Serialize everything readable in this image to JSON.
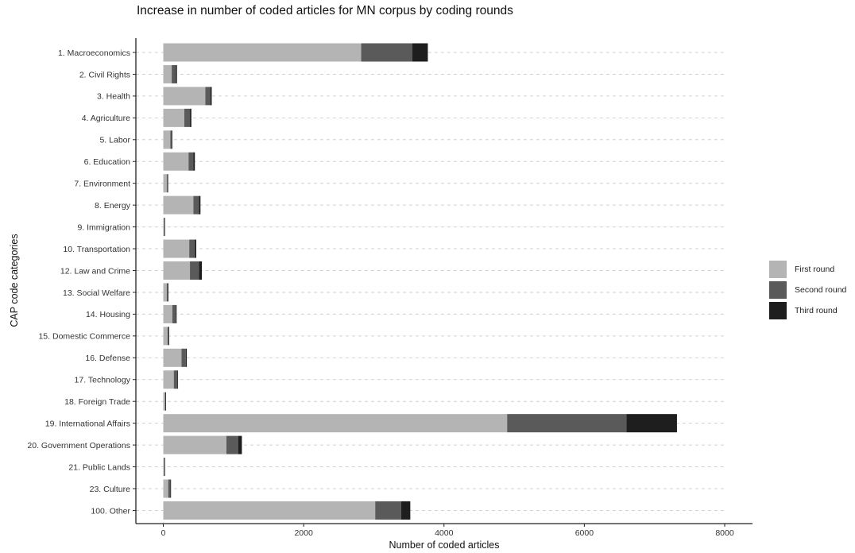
{
  "chart_data": {
    "type": "bar",
    "orientation": "horizontal",
    "stacked": true,
    "title": "Increase in number of coded articles for MN corpus by coding rounds",
    "xlabel": "Number of coded articles",
    "ylabel": "CAP code categories",
    "xlim": [
      0,
      8000
    ],
    "xticks": [
      "0",
      "2000",
      "4000",
      "6000",
      "8000"
    ],
    "xtick_values": [
      0,
      2000,
      4000,
      6000,
      8000
    ],
    "grid": "dashed horizontal",
    "legend_position": "right",
    "categories": [
      "1. Macroeconomics",
      "2. Civil Rights",
      "3. Health",
      "4. Agriculture",
      "5. Labor",
      "6. Education",
      "7. Environment",
      "8. Energy",
      "9. Immigration",
      "10. Transportation",
      "12. Law and Crime",
      "13. Social Welfare",
      "14. Housing",
      "15. Domestic Commerce",
      "16. Defense",
      "17. Technology",
      "18. Foreign Trade",
      "19. International Affairs",
      "20. Government Operations",
      "21. Public Lands",
      "23. Culture",
      "100. Other"
    ],
    "series": [
      {
        "name": "First round",
        "color": "#b4b4b4",
        "values": [
          2820,
          120,
          600,
          300,
          100,
          360,
          50,
          430,
          10,
          370,
          380,
          50,
          130,
          60,
          260,
          150,
          25,
          4900,
          900,
          10,
          70,
          3020
        ]
      },
      {
        "name": "Second round",
        "color": "#5a5a5a",
        "values": [
          730,
          60,
          70,
          80,
          20,
          70,
          10,
          80,
          5,
          80,
          130,
          15,
          50,
          15,
          60,
          50,
          5,
          1700,
          170,
          5,
          30,
          370
        ]
      },
      {
        "name": "Third round",
        "color": "#1e1e1e",
        "values": [
          220,
          15,
          20,
          20,
          5,
          20,
          3,
          20,
          2,
          20,
          40,
          5,
          10,
          5,
          15,
          10,
          2,
          720,
          50,
          2,
          10,
          130
        ]
      }
    ]
  }
}
